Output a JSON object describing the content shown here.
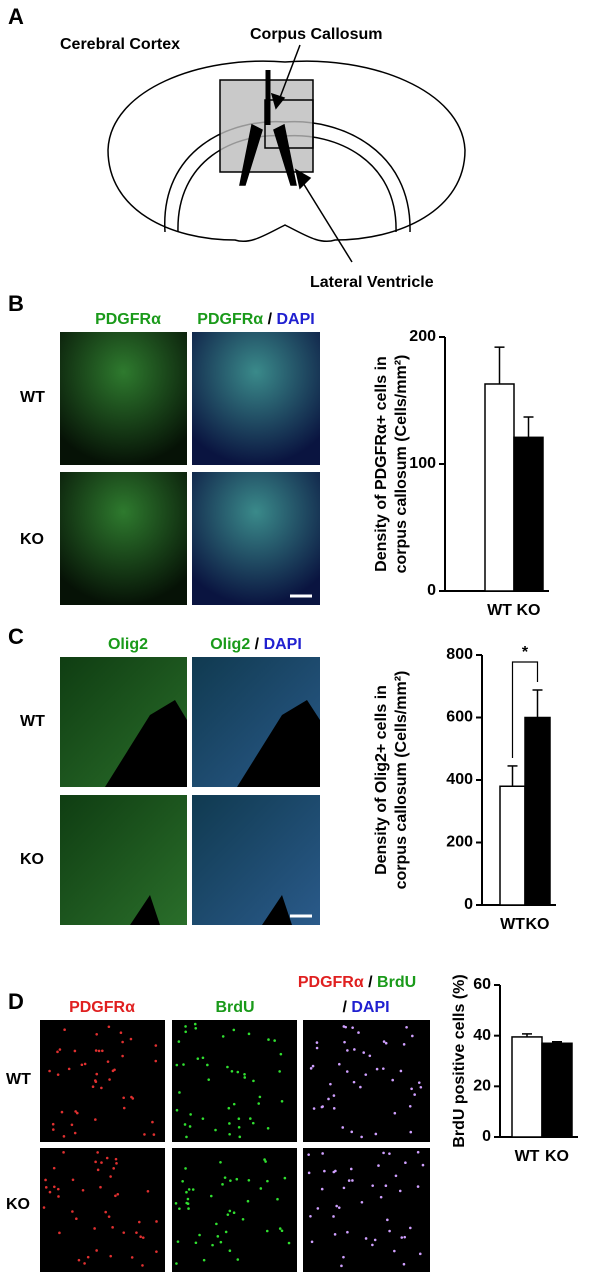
{
  "figure": {
    "panel_labels": [
      "A",
      "B",
      "C",
      "D"
    ],
    "diagram_labels": {
      "cortex": "Cerebral Cortex",
      "callosum": "Corpus Callosum",
      "ventricle": "Lateral Ventricle"
    },
    "panel_b": {
      "col1": "PDGFRα",
      "col2_marker": "PDGFRα",
      "col2_sep": " / ",
      "col2_stain": "DAPI",
      "rows": [
        "WT",
        "KO"
      ]
    },
    "panel_c": {
      "col1": "Olig2",
      "col2_marker": "Olig2",
      "col2_sep": " / ",
      "col2_stain": "DAPI",
      "rows": [
        "WT",
        "KO"
      ]
    },
    "panel_d": {
      "col1": "PDGFRα",
      "col2": "BrdU",
      "col3_marker": "PDGFRα",
      "col3_sep": " / ",
      "col3_second": "BrdU",
      "col3_line2_sep": "/ ",
      "col3_stain": "DAPI",
      "rows": [
        "WT",
        "KO"
      ]
    }
  },
  "chart_data": [
    {
      "type": "bar",
      "y_label": [
        "Density of PDGFRα+ cells in",
        "corpus callosum (Cells/mm²)"
      ],
      "categories": [
        "WT",
        "KO"
      ],
      "values": [
        163,
        121
      ],
      "errors": [
        29,
        16
      ],
      "colors": [
        "#ffffff",
        "#000000"
      ],
      "ylim": [
        0,
        200
      ],
      "yticks": [
        0,
        100,
        200
      ]
    },
    {
      "type": "bar",
      "y_label": [
        "Density of Olig2+ cells in",
        "corpus callosum (Cells/mm²)"
      ],
      "categories": [
        "WT",
        "KO"
      ],
      "values": [
        380,
        600
      ],
      "errors": [
        65,
        88
      ],
      "colors": [
        "#ffffff",
        "#000000"
      ],
      "ylim": [
        0,
        800
      ],
      "yticks": [
        0,
        200,
        400,
        600,
        800
      ],
      "annotations": [
        "*"
      ]
    },
    {
      "type": "bar",
      "y_label": [
        "BrdU positive cells (%)"
      ],
      "categories": [
        "WT",
        "KO"
      ],
      "values": [
        39.5,
        37
      ],
      "errors": [
        1.2,
        0.6
      ],
      "colors": [
        "#ffffff",
        "#000000"
      ],
      "ylim": [
        0,
        60
      ],
      "yticks": [
        0,
        20,
        40,
        60
      ]
    }
  ]
}
